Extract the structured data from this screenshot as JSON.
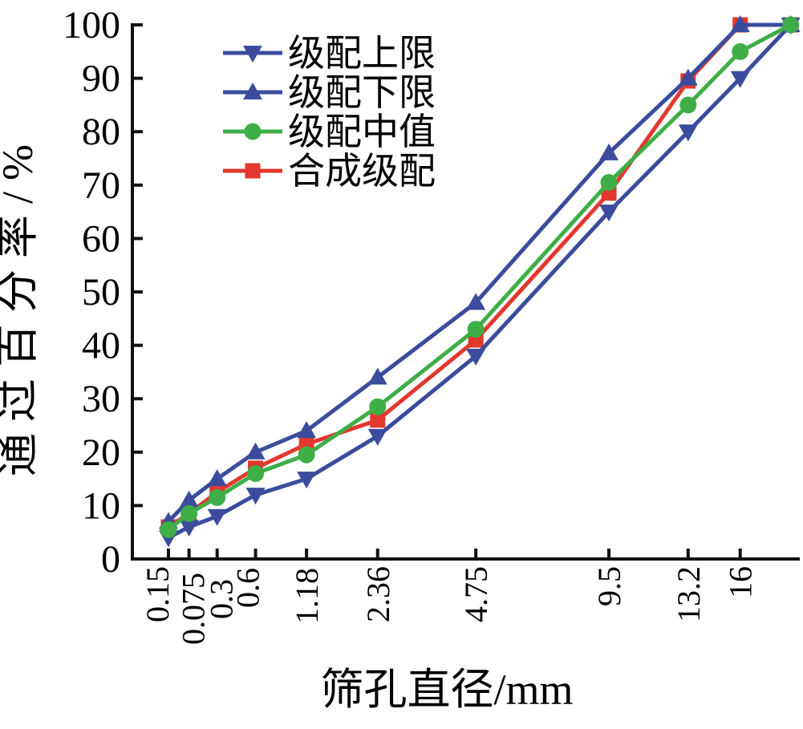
{
  "figure_title": "",
  "chart_data": {
    "type": "line",
    "title": "",
    "xlabel": "筛孔直径/mm",
    "ylabel": "通过百分率/%",
    "x_scale": "power-0.45 (Fuller gradation axis)",
    "x_tick_labels_displayed": [
      "0.15",
      "0.075",
      "0.3",
      "0.6",
      "1.18",
      "2.36",
      "4.75",
      "9.5",
      "13.2",
      "16"
    ],
    "x_positions_mm": [
      0.075,
      0.15,
      0.3,
      0.6,
      1.18,
      2.36,
      4.75,
      9.5,
      13.2,
      16,
      19
    ],
    "ylim": [
      0,
      100
    ],
    "y_ticks": [
      0,
      10,
      20,
      30,
      40,
      50,
      60,
      70,
      80,
      90,
      100
    ],
    "grid": "off",
    "legend_position": "upper-left-inside",
    "series": [
      {
        "name": "级配上限",
        "marker": "triangle-down",
        "color": "#3B4C9D",
        "values": [
          4,
          6,
          8,
          12,
          15,
          23,
          38,
          65,
          80,
          90,
          100
        ]
      },
      {
        "name": "级配下限",
        "marker": "triangle-up",
        "color": "#3B4C9D",
        "values": [
          7,
          11,
          15,
          20,
          24,
          34,
          48,
          76,
          90,
          100,
          100
        ]
      },
      {
        "name": "级配中值",
        "marker": "circle",
        "color": "#3FAE47",
        "values": [
          5.5,
          8.5,
          11.5,
          16,
          19.5,
          28.5,
          43,
          70.5,
          85,
          95,
          100
        ]
      },
      {
        "name": "合成级配",
        "marker": "square",
        "color": "#E2382D",
        "values": [
          6,
          8.5,
          12.5,
          17,
          21.5,
          26,
          41,
          68.5,
          89.5,
          100,
          100
        ]
      }
    ]
  },
  "legend": [
    {
      "label": "级配上限",
      "marker": "triangle-down",
      "color": "#3B4C9D"
    },
    {
      "label": "级配下限",
      "marker": "triangle-up",
      "color": "#3B4C9D"
    },
    {
      "label": "级配中值",
      "marker": "circle",
      "color": "#3FAE47"
    },
    {
      "label": "合成级配",
      "marker": "square",
      "color": "#E2382D"
    }
  ],
  "axis_color": "#111111"
}
